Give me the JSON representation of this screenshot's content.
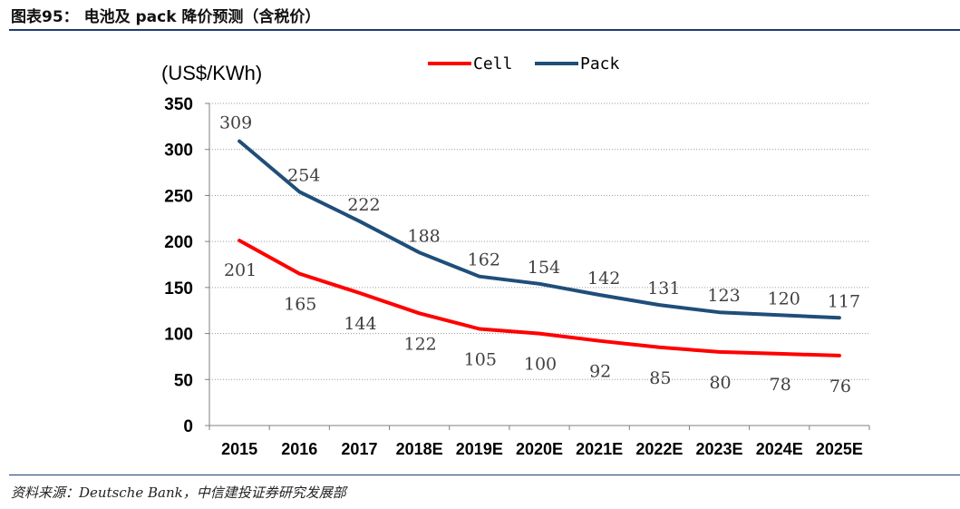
{
  "figure": {
    "title": "图表95：   电池及 pack 降价预测（含税价）",
    "source": "资料来源：Deutsche Bank，中信建投证券研究发展部"
  },
  "chart_data": {
    "type": "line",
    "ylabel": "(US$/KWh)",
    "ylim": [
      0,
      350
    ],
    "yticks": [
      0,
      50,
      100,
      150,
      200,
      250,
      300,
      350
    ],
    "categories": [
      "2015",
      "2016",
      "2017",
      "2018E",
      "2019E",
      "2020E",
      "2021E",
      "2022E",
      "2023E",
      "2024E",
      "2025E"
    ],
    "grid": true,
    "legend_position": "top-center",
    "series": [
      {
        "name": "Cell",
        "color": "#ff0000",
        "values": [
          201,
          165,
          144,
          122,
          105,
          100,
          92,
          85,
          80,
          78,
          76
        ]
      },
      {
        "name": "Pack",
        "color": "#1f4e79",
        "values": [
          309,
          254,
          222,
          188,
          162,
          154,
          142,
          131,
          123,
          120,
          117
        ]
      }
    ]
  }
}
